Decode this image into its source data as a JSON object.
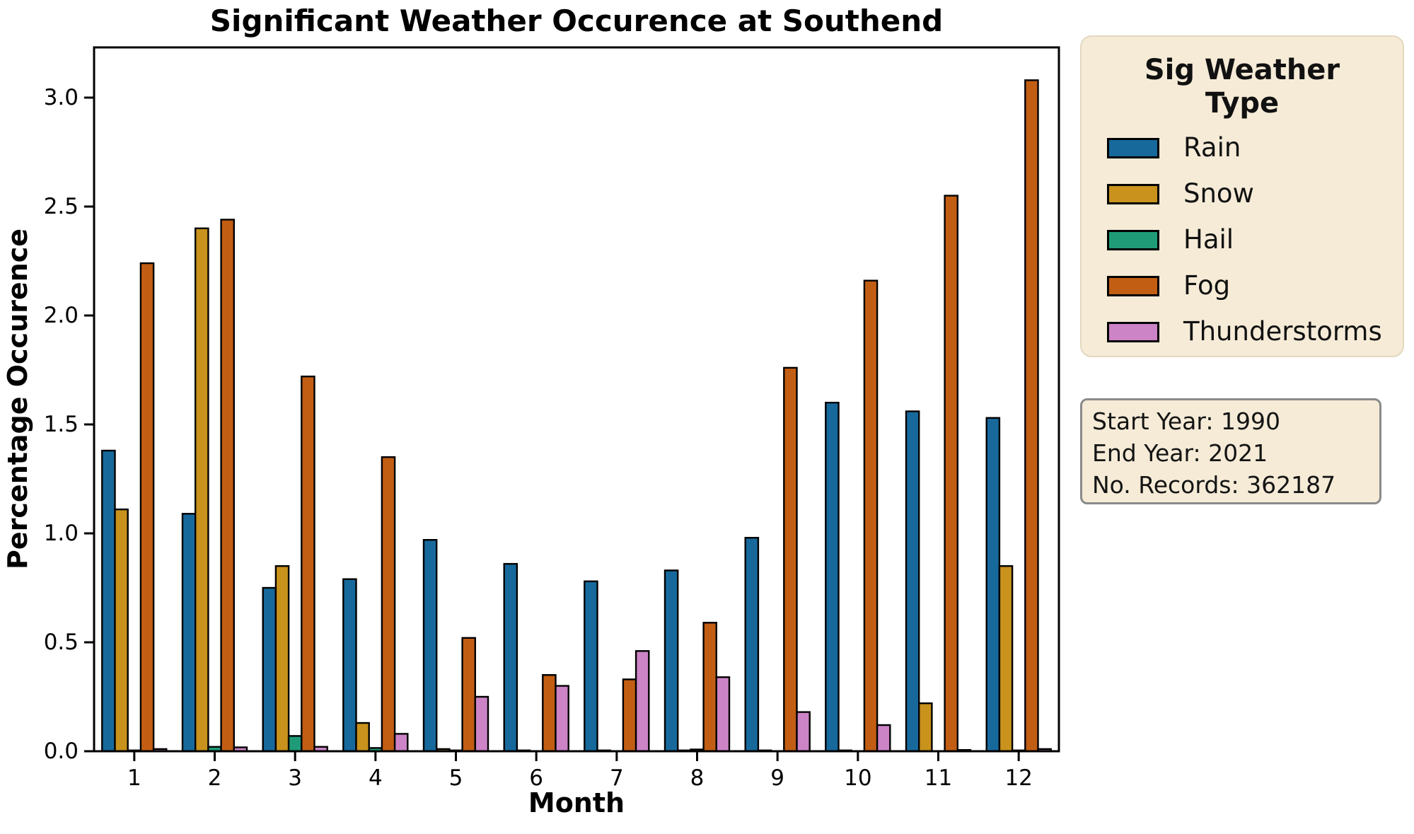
{
  "figure": {
    "title": "Significant Weather Occurence at Southend",
    "x_axis_label": "Month",
    "y_axis_label": "Percentage Occurence"
  },
  "chart_data": {
    "type": "bar",
    "title": "Significant Weather Occurence at Southend",
    "xlabel": "Month",
    "ylabel": "Percentage Occurence",
    "categories": [
      "1",
      "2",
      "3",
      "4",
      "5",
      "6",
      "7",
      "8",
      "9",
      "10",
      "11",
      "12"
    ],
    "y_ticks": [
      "0.0",
      "0.5",
      "1.0",
      "1.5",
      "2.0",
      "2.5",
      "3.0"
    ],
    "ylim": [
      0,
      3.23
    ],
    "grid": false,
    "legend_position": "outside-upper-right",
    "bar_edge_color": "#000000",
    "series": [
      {
        "name": "Rain",
        "color": "#17699C",
        "values": [
          1.38,
          1.09,
          0.75,
          0.79,
          0.97,
          0.86,
          0.78,
          0.83,
          0.98,
          1.6,
          1.56,
          1.53
        ]
      },
      {
        "name": "Snow",
        "color": "#C8921C",
        "values": [
          1.11,
          2.4,
          0.85,
          0.13,
          0.01,
          0.004,
          0.004,
          0.004,
          0.004,
          0.004,
          0.22,
          0.85
        ]
      },
      {
        "name": "Hail",
        "color": "#1F9C77",
        "values": [
          0.004,
          0.02,
          0.07,
          0.015,
          0.004,
          0,
          0,
          0.008,
          0,
          0,
          0,
          0.004
        ]
      },
      {
        "name": "Fog",
        "color": "#C25E14",
        "values": [
          2.24,
          2.44,
          1.72,
          1.35,
          0.52,
          0.35,
          0.33,
          0.59,
          1.76,
          2.16,
          2.55,
          3.08
        ]
      },
      {
        "name": "Thunderstorms",
        "color": "#CC84C6",
        "values": [
          0.01,
          0.018,
          0.02,
          0.08,
          0.25,
          0.3,
          0.46,
          0.34,
          0.18,
          0.12,
          0.006,
          0.01
        ]
      }
    ]
  },
  "legend": {
    "title_line1": "Sig Weather",
    "title_line2": "Type",
    "entries": [
      {
        "label": "Rain"
      },
      {
        "label": "Snow"
      },
      {
        "label": "Hail"
      },
      {
        "label": "Fog"
      },
      {
        "label": "Thunderstorms"
      }
    ]
  },
  "info_box": {
    "line1": "Start Year: 1990",
    "line2": "End Year: 2021",
    "line3": "No. Records: 362187"
  }
}
